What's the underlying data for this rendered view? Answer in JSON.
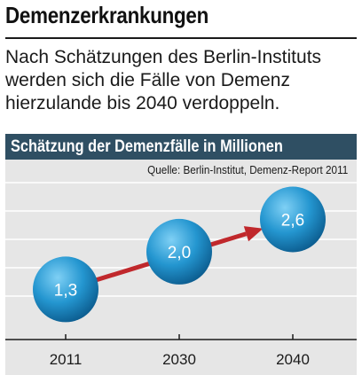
{
  "header": {
    "title": "Demenzerkrankungen",
    "intro": "Nach Schätzungen des Berlin-Instituts werden sich die Fälle von Demenz hierzulande bis 2040 verdoppeln."
  },
  "panel": {
    "title": "Schätzung der Demenzfälle in Millionen",
    "source": "Quelle: Berlin-Institut, Demenz-Report 2011"
  },
  "colors": {
    "panel_header": "#2f4f63",
    "panel_background": "#e6e6e6",
    "bubble": "#1e8fc8",
    "arrow": "#c0282c"
  },
  "chart_data": {
    "type": "scatter",
    "title": "Schätzung der Demenzfälle in Millionen",
    "xlabel": "",
    "ylabel": "",
    "categories": [
      "2011",
      "2030",
      "2040"
    ],
    "values": [
      1.3,
      2.0,
      2.6
    ],
    "data_labels": [
      "1,3",
      "2,0",
      "2,6"
    ],
    "ylim": [
      0.5,
      3.3
    ],
    "grid": true,
    "legend": "none"
  }
}
